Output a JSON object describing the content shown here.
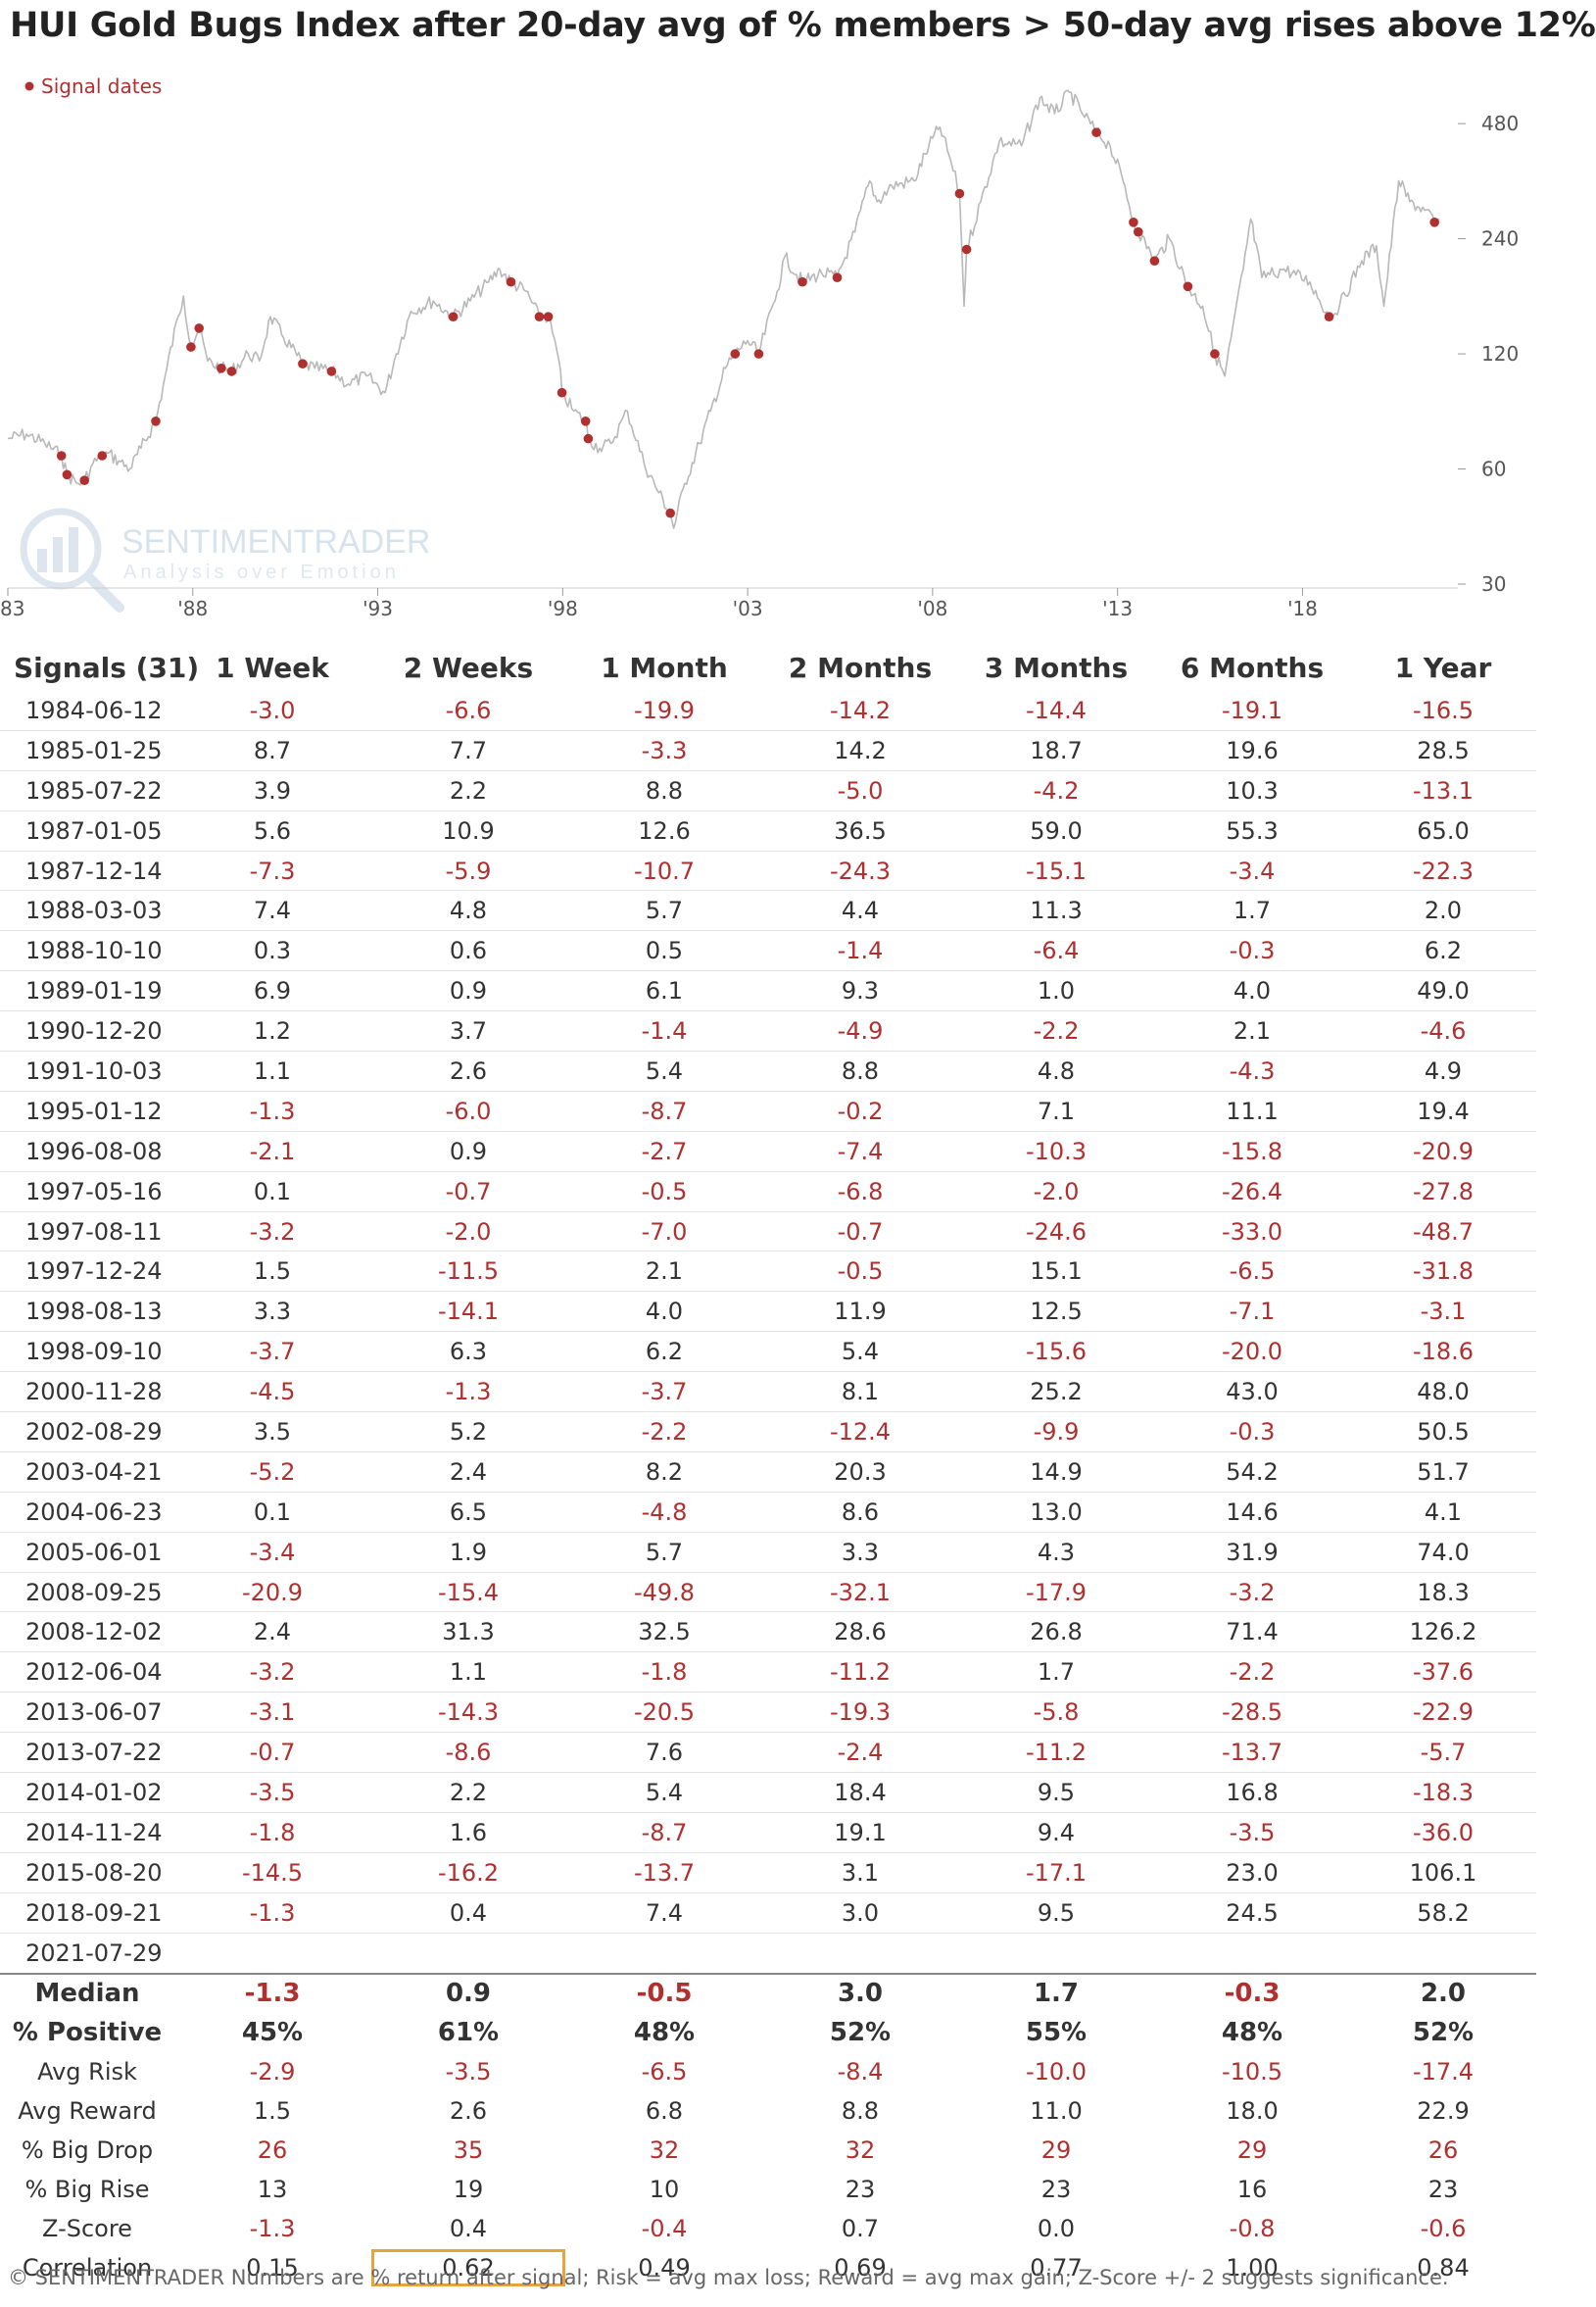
{
  "chart_data": {
    "type": "line",
    "title": "HUI Gold Bugs Index after 20-day avg of % members > 50-day avg rises above 12%",
    "legend": {
      "label": "Signal dates",
      "color": "#b03030",
      "placement": "top-left"
    },
    "y_scale": "log",
    "ylim": [
      30,
      560
    ],
    "y_ticks": [
      480,
      240,
      120,
      60,
      30
    ],
    "xlim": [
      1983.0,
      2022.2
    ],
    "x_ticks": [
      {
        "label": "'83",
        "year": 1983
      },
      {
        "label": "'88",
        "year": 1988
      },
      {
        "label": "'93",
        "year": 1993
      },
      {
        "label": "'98",
        "year": 1998
      },
      {
        "label": "'03",
        "year": 2003
      },
      {
        "label": "'08",
        "year": 2008
      },
      {
        "label": "'13",
        "year": 2013
      },
      {
        "label": "'18",
        "year": 2018
      }
    ],
    "line_color": "#b8b8b8",
    "series": [
      {
        "values": [
          [
            1983.0,
            72
          ],
          [
            1983.5,
            74
          ],
          [
            1984.0,
            70
          ],
          [
            1984.45,
            65
          ],
          [
            1984.6,
            58
          ],
          [
            1984.9,
            55
          ],
          [
            1985.07,
            56
          ],
          [
            1985.3,
            62
          ],
          [
            1985.55,
            65
          ],
          [
            1985.7,
            66
          ],
          [
            1986.0,
            63
          ],
          [
            1986.3,
            60
          ],
          [
            1986.6,
            68
          ],
          [
            1987.0,
            80
          ],
          [
            1987.3,
            110
          ],
          [
            1987.6,
            150
          ],
          [
            1987.75,
            170
          ],
          [
            1987.95,
            125
          ],
          [
            1988.17,
            140
          ],
          [
            1988.4,
            115
          ],
          [
            1988.77,
            110
          ],
          [
            1989.05,
            108
          ],
          [
            1989.5,
            120
          ],
          [
            1989.8,
            115
          ],
          [
            1990.1,
            150
          ],
          [
            1990.4,
            135
          ],
          [
            1990.97,
            113
          ],
          [
            1991.3,
            110
          ],
          [
            1991.75,
            108
          ],
          [
            1992.2,
            100
          ],
          [
            1992.7,
            105
          ],
          [
            1993.2,
            95
          ],
          [
            1993.5,
            120
          ],
          [
            1993.9,
            155
          ],
          [
            1994.5,
            165
          ],
          [
            1995.04,
            150
          ],
          [
            1995.5,
            165
          ],
          [
            1996.0,
            185
          ],
          [
            1996.3,
            200
          ],
          [
            1996.6,
            185
          ],
          [
            1997.0,
            175
          ],
          [
            1997.37,
            150
          ],
          [
            1997.61,
            150
          ],
          [
            1997.9,
            115
          ],
          [
            1997.98,
            95
          ],
          [
            1998.3,
            85
          ],
          [
            1998.62,
            80
          ],
          [
            1998.69,
            72
          ],
          [
            1999.0,
            68
          ],
          [
            1999.3,
            70
          ],
          [
            1999.75,
            85
          ],
          [
            2000.2,
            62
          ],
          [
            2000.6,
            52
          ],
          [
            2000.91,
            46
          ],
          [
            2001.0,
            42
          ],
          [
            2001.3,
            55
          ],
          [
            2001.7,
            70
          ],
          [
            2002.0,
            85
          ],
          [
            2002.4,
            110
          ],
          [
            2002.66,
            120
          ],
          [
            2003.0,
            130
          ],
          [
            2003.3,
            120
          ],
          [
            2003.8,
            175
          ],
          [
            2004.0,
            215
          ],
          [
            2004.48,
            185
          ],
          [
            2005.0,
            195
          ],
          [
            2005.42,
            190
          ],
          [
            2005.9,
            250
          ],
          [
            2006.3,
            340
          ],
          [
            2006.5,
            300
          ],
          [
            2006.9,
            330
          ],
          [
            2007.5,
            340
          ],
          [
            2007.9,
            420
          ],
          [
            2008.2,
            470
          ],
          [
            2008.5,
            380
          ],
          [
            2008.73,
            315
          ],
          [
            2008.85,
            160
          ],
          [
            2008.92,
            225
          ],
          [
            2009.3,
            300
          ],
          [
            2009.8,
            430
          ],
          [
            2010.4,
            420
          ],
          [
            2010.9,
            560
          ],
          [
            2011.3,
            510
          ],
          [
            2011.7,
            580
          ],
          [
            2012.0,
            520
          ],
          [
            2012.43,
            455
          ],
          [
            2012.8,
            420
          ],
          [
            2013.2,
            330
          ],
          [
            2013.43,
            265
          ],
          [
            2013.56,
            250
          ],
          [
            2013.9,
            220
          ],
          [
            2014.0,
            210
          ],
          [
            2014.4,
            240
          ],
          [
            2014.9,
            180
          ],
          [
            2015.3,
            160
          ],
          [
            2015.63,
            120
          ],
          [
            2015.9,
            105
          ],
          [
            2016.4,
            200
          ],
          [
            2016.6,
            270
          ],
          [
            2016.9,
            190
          ],
          [
            2017.5,
            200
          ],
          [
            2018.2,
            185
          ],
          [
            2018.72,
            150
          ],
          [
            2019.0,
            160
          ],
          [
            2019.6,
            210
          ],
          [
            2020.0,
            230
          ],
          [
            2020.2,
            160
          ],
          [
            2020.6,
            340
          ],
          [
            2020.9,
            300
          ],
          [
            2021.3,
            285
          ],
          [
            2021.57,
            265
          ],
          [
            2021.7,
            270
          ]
        ]
      }
    ],
    "signal_points": [
      [
        1984.45,
        65
      ],
      [
        1984.6,
        58
      ],
      [
        1985.07,
        56
      ],
      [
        1985.55,
        65
      ],
      [
        1987.0,
        80
      ],
      [
        1987.95,
        125
      ],
      [
        1988.17,
        140
      ],
      [
        1988.77,
        110
      ],
      [
        1989.05,
        108
      ],
      [
        1990.97,
        113
      ],
      [
        1991.75,
        108
      ],
      [
        1995.04,
        150
      ],
      [
        1996.6,
        185
      ],
      [
        1997.37,
        150
      ],
      [
        1997.61,
        150
      ],
      [
        1997.98,
        95
      ],
      [
        1998.62,
        80
      ],
      [
        1998.69,
        72
      ],
      [
        2000.91,
        46
      ],
      [
        2002.66,
        120
      ],
      [
        2003.3,
        120
      ],
      [
        2004.48,
        185
      ],
      [
        2005.42,
        190
      ],
      [
        2008.73,
        315
      ],
      [
        2008.92,
        225
      ],
      [
        2012.43,
        455
      ],
      [
        2013.43,
        265
      ],
      [
        2013.56,
        250
      ],
      [
        2014.0,
        210
      ],
      [
        2014.9,
        180
      ],
      [
        2015.63,
        120
      ],
      [
        2018.72,
        150
      ],
      [
        2021.57,
        265
      ]
    ],
    "watermark": {
      "name": "SENTIMENTRADER",
      "tagline": "Analysis over Emotion"
    },
    "columns": [
      "Signals (31)",
      "1 Week",
      "2 Weeks",
      "1 Month",
      "2 Months",
      "3 Months",
      "6 Months",
      "1 Year"
    ],
    "rows": [
      [
        "1984-06-12",
        "-3.0",
        "-6.6",
        "-19.9",
        "-14.2",
        "-14.4",
        "-19.1",
        "-16.5"
      ],
      [
        "1985-01-25",
        "8.7",
        "7.7",
        "-3.3",
        "14.2",
        "18.7",
        "19.6",
        "28.5"
      ],
      [
        "1985-07-22",
        "3.9",
        "2.2",
        "8.8",
        "-5.0",
        "-4.2",
        "10.3",
        "-13.1"
      ],
      [
        "1987-01-05",
        "5.6",
        "10.9",
        "12.6",
        "36.5",
        "59.0",
        "55.3",
        "65.0"
      ],
      [
        "1987-12-14",
        "-7.3",
        "-5.9",
        "-10.7",
        "-24.3",
        "-15.1",
        "-3.4",
        "-22.3"
      ],
      [
        "1988-03-03",
        "7.4",
        "4.8",
        "5.7",
        "4.4",
        "11.3",
        "1.7",
        "2.0"
      ],
      [
        "1988-10-10",
        "0.3",
        "0.6",
        "0.5",
        "-1.4",
        "-6.4",
        "-0.3",
        "6.2"
      ],
      [
        "1989-01-19",
        "6.9",
        "0.9",
        "6.1",
        "9.3",
        "1.0",
        "4.0",
        "49.0"
      ],
      [
        "1990-12-20",
        "1.2",
        "3.7",
        "-1.4",
        "-4.9",
        "-2.2",
        "2.1",
        "-4.6"
      ],
      [
        "1991-10-03",
        "1.1",
        "2.6",
        "5.4",
        "8.8",
        "4.8",
        "-4.3",
        "4.9"
      ],
      [
        "1995-01-12",
        "-1.3",
        "-6.0",
        "-8.7",
        "-0.2",
        "7.1",
        "11.1",
        "19.4"
      ],
      [
        "1996-08-08",
        "-2.1",
        "0.9",
        "-2.7",
        "-7.4",
        "-10.3",
        "-15.8",
        "-20.9"
      ],
      [
        "1997-05-16",
        "0.1",
        "-0.7",
        "-0.5",
        "-6.8",
        "-2.0",
        "-26.4",
        "-27.8"
      ],
      [
        "1997-08-11",
        "-3.2",
        "-2.0",
        "-7.0",
        "-0.7",
        "-24.6",
        "-33.0",
        "-48.7"
      ],
      [
        "1997-12-24",
        "1.5",
        "-11.5",
        "2.1",
        "-0.5",
        "15.1",
        "-6.5",
        "-31.8"
      ],
      [
        "1998-08-13",
        "3.3",
        "-14.1",
        "4.0",
        "11.9",
        "12.5",
        "-7.1",
        "-3.1"
      ],
      [
        "1998-09-10",
        "-3.7",
        "6.3",
        "6.2",
        "5.4",
        "-15.6",
        "-20.0",
        "-18.6"
      ],
      [
        "2000-11-28",
        "-4.5",
        "-1.3",
        "-3.7",
        "8.1",
        "25.2",
        "43.0",
        "48.0"
      ],
      [
        "2002-08-29",
        "3.5",
        "5.2",
        "-2.2",
        "-12.4",
        "-9.9",
        "-0.3",
        "50.5"
      ],
      [
        "2003-04-21",
        "-5.2",
        "2.4",
        "8.2",
        "20.3",
        "14.9",
        "54.2",
        "51.7"
      ],
      [
        "2004-06-23",
        "0.1",
        "6.5",
        "-4.8",
        "8.6",
        "13.0",
        "14.6",
        "4.1"
      ],
      [
        "2005-06-01",
        "-3.4",
        "1.9",
        "5.7",
        "3.3",
        "4.3",
        "31.9",
        "74.0"
      ],
      [
        "2008-09-25",
        "-20.9",
        "-15.4",
        "-49.8",
        "-32.1",
        "-17.9",
        "-3.2",
        "18.3"
      ],
      [
        "2008-12-02",
        "2.4",
        "31.3",
        "32.5",
        "28.6",
        "26.8",
        "71.4",
        "126.2"
      ],
      [
        "2012-06-04",
        "-3.2",
        "1.1",
        "-1.8",
        "-11.2",
        "1.7",
        "-2.2",
        "-37.6"
      ],
      [
        "2013-06-07",
        "-3.1",
        "-14.3",
        "-20.5",
        "-19.3",
        "-5.8",
        "-28.5",
        "-22.9"
      ],
      [
        "2013-07-22",
        "-0.7",
        "-8.6",
        "7.6",
        "-2.4",
        "-11.2",
        "-13.7",
        "-5.7"
      ],
      [
        "2014-01-02",
        "-3.5",
        "2.2",
        "5.4",
        "18.4",
        "9.5",
        "16.8",
        "-18.3"
      ],
      [
        "2014-11-24",
        "-1.8",
        "1.6",
        "-8.7",
        "19.1",
        "9.4",
        "-3.5",
        "-36.0"
      ],
      [
        "2015-08-20",
        "-14.5",
        "-16.2",
        "-13.7",
        "3.1",
        "-17.1",
        "23.0",
        "106.1"
      ],
      [
        "2018-09-21",
        "-1.3",
        "0.4",
        "7.4",
        "3.0",
        "9.5",
        "24.5",
        "58.2"
      ],
      [
        "2021-07-29",
        "",
        "",
        "",
        "",
        "",
        "",
        ""
      ]
    ],
    "summary": [
      [
        "Median",
        "-1.3",
        "0.9",
        "-0.5",
        "3.0",
        "1.7",
        "-0.3",
        "2.0"
      ],
      [
        "% Positive",
        "45%",
        "61%",
        "48%",
        "52%",
        "55%",
        "48%",
        "52%"
      ],
      [
        "Avg Risk",
        "-2.9",
        "-3.5",
        "-6.5",
        "-8.4",
        "-10.0",
        "-10.5",
        "-17.4"
      ],
      [
        "Avg Reward",
        "1.5",
        "2.6",
        "6.8",
        "8.8",
        "11.0",
        "18.0",
        "22.9"
      ],
      [
        "% Big Drop",
        "26",
        "35",
        "32",
        "32",
        "29",
        "29",
        "26"
      ],
      [
        "% Big Rise",
        "13",
        "19",
        "10",
        "23",
        "23",
        "16",
        "23"
      ],
      [
        "Z-Score",
        "-1.3",
        "0.4",
        "-0.4",
        "0.7",
        "0.0",
        "-0.8",
        "-0.6"
      ],
      [
        "Correlation",
        "0.15",
        "0.62",
        "0.49",
        "0.69",
        "0.77",
        "1.00",
        "0.84"
      ]
    ],
    "highlighted_cell": {
      "row_label": "Correlation",
      "column": "2 Weeks",
      "color": "#e8a33a"
    }
  },
  "footer": "© SENTIMENTRADER  Numbers are % return after signal; Risk = avg max loss; Reward = avg max gain; Z-Score +/- 2 suggests significance."
}
